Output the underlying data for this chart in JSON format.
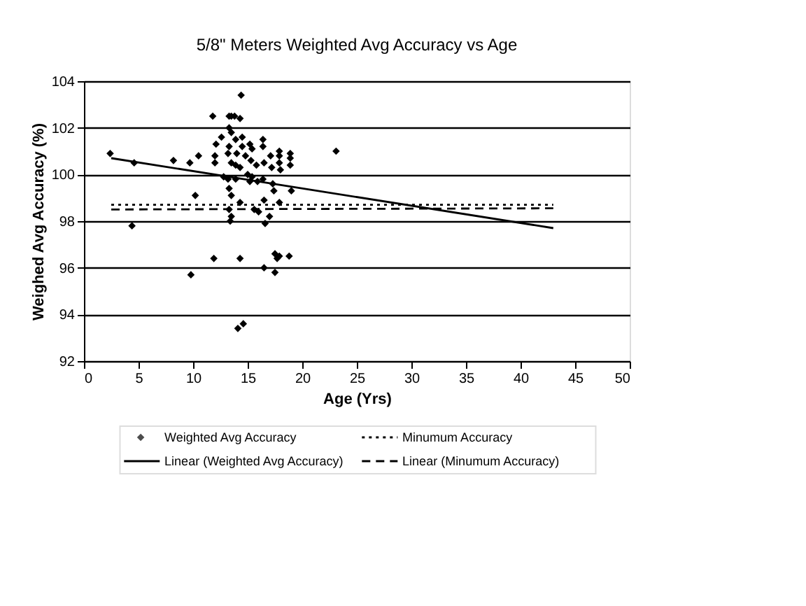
{
  "chart_data": {
    "type": "scatter",
    "title": "5/8\" Meters Weighted Avg Accuracy vs Age",
    "xlabel": "Age (Yrs)",
    "ylabel": "Weighed Avg Accuracy (%)",
    "xlim": [
      0,
      50
    ],
    "xticks": [
      0,
      5,
      10,
      15,
      20,
      25,
      30,
      35,
      40,
      45,
      50
    ],
    "ylim": [
      92,
      104
    ],
    "yticks": [
      92,
      94,
      96,
      98,
      100,
      102,
      104
    ],
    "grid": "y",
    "legend": "bottom",
    "series": [
      {
        "name": "Weighted Avg Accuracy",
        "marker": "diamond",
        "color": "#000000",
        "x": [
          2.4,
          4.6,
          4.4,
          8.2,
          9.7,
          10.5,
          10.2,
          9.8,
          11.8,
          11.9,
          12.0,
          12.0,
          12.1,
          12.6,
          12.8,
          13.3,
          13.5,
          13.8,
          13.3,
          13.5,
          13.3,
          13.2,
          13.5,
          13.2,
          13.3,
          13.5,
          13.3,
          13.5,
          13.4,
          13.9,
          14.0,
          13.9,
          13.9,
          14.3,
          14.4,
          14.5,
          14.5,
          14.3,
          14.3,
          14.3,
          14.1,
          14.6,
          14.8,
          15.0,
          15.2,
          15.4,
          15.3,
          15.4,
          15.2,
          15.6,
          16.0,
          15.8,
          15.9,
          16.4,
          16.4,
          16.5,
          16.4,
          16.5,
          16.6,
          16.5,
          17.1,
          17.2,
          17.3,
          17.4,
          17.0,
          17.5,
          17.5,
          17.7,
          17.9,
          17.9,
          17.9,
          17.9,
          18.0,
          17.9,
          18.9,
          18.9,
          18.9,
          19.0,
          18.8,
          23.1
        ],
        "values": [
          100.9,
          100.5,
          97.8,
          100.6,
          100.5,
          100.8,
          99.1,
          95.7,
          102.5,
          96.4,
          100.5,
          100.8,
          101.3,
          101.6,
          99.9,
          102.5,
          102.5,
          102.5,
          102.0,
          101.8,
          101.2,
          100.9,
          100.5,
          99.8,
          99.4,
          99.1,
          98.5,
          98.2,
          98.0,
          101.5,
          100.9,
          100.4,
          99.8,
          102.4,
          103.4,
          101.6,
          101.2,
          100.3,
          98.8,
          96.4,
          93.4,
          93.6,
          100.8,
          100.0,
          101.3,
          101.1,
          100.6,
          99.9,
          99.7,
          98.5,
          98.4,
          100.4,
          99.7,
          101.5,
          101.2,
          100.5,
          99.8,
          98.9,
          97.9,
          96.0,
          100.8,
          100.3,
          99.6,
          99.3,
          98.2,
          95.8,
          96.6,
          96.4,
          96.5,
          101.0,
          100.8,
          100.5,
          100.2,
          98.8,
          100.9,
          100.7,
          100.4,
          99.3,
          96.5,
          101.0
        ]
      },
      {
        "name": "Minumum Accuracy",
        "type": "line",
        "line_style": "dotted",
        "marker": "none",
        "color": "#000000",
        "x": [
          2.5,
          43.0
        ],
        "values": [
          98.7,
          98.7
        ]
      },
      {
        "name": "Linear (Weighted Avg Accuracy)",
        "type": "line",
        "line_style": "solid",
        "marker": "none",
        "color": "#000000",
        "x": [
          2.5,
          43.0
        ],
        "values": [
          100.7,
          97.7
        ]
      },
      {
        "name": "Linear (Minumum Accuracy)",
        "type": "line",
        "line_style": "dashed",
        "marker": "none",
        "color": "#000000",
        "x": [
          2.5,
          43.0
        ],
        "values": [
          98.5,
          98.55
        ]
      }
    ]
  }
}
